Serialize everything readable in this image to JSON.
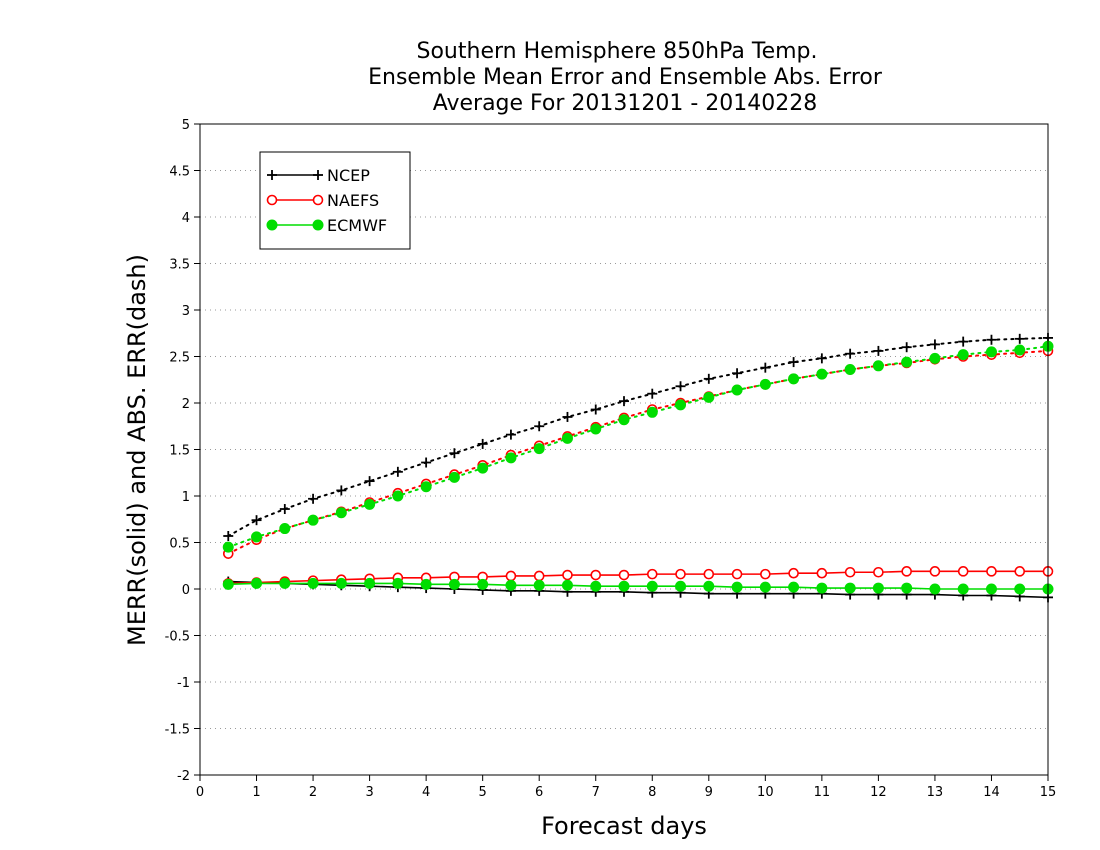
{
  "chart_data": {
    "type": "line",
    "title_lines": [
      "Southern Hemisphere 850hPa Temp.",
      "Ensemble Mean Error and Ensemble Abs. Error",
      "Average For 20131201 - 20140228"
    ],
    "xlabel": "Forecast days",
    "ylabel": "MERR(solid) and ABS. ERR(dash)",
    "xlim": [
      0,
      15
    ],
    "ylim": [
      -2,
      5
    ],
    "xticks": [
      0,
      1,
      2,
      3,
      4,
      5,
      6,
      7,
      8,
      9,
      10,
      11,
      12,
      13,
      14,
      15
    ],
    "xtick_labels": [
      "0",
      "1",
      "2",
      "3",
      "4",
      "5",
      "6",
      "7",
      "8",
      "9",
      "10",
      "11",
      "12",
      "13",
      "14",
      "15"
    ],
    "yticks": [
      -2,
      -1.5,
      -1,
      -0.5,
      0,
      0.5,
      1,
      1.5,
      2,
      2.5,
      3,
      3.5,
      4,
      4.5,
      5
    ],
    "ytick_labels": [
      "-2",
      "-1.5",
      "-1",
      "-0.5",
      "0",
      "0.5",
      "1",
      "1.5",
      "2",
      "2.5",
      "3",
      "3.5",
      "4",
      "4.5",
      "5"
    ],
    "grid": "horizontal dotted",
    "legend_position": "top-left",
    "x": [
      0.5,
      1,
      1.5,
      2,
      2.5,
      3,
      3.5,
      4,
      4.5,
      5,
      5.5,
      6,
      6.5,
      7,
      7.5,
      8,
      8.5,
      9,
      9.5,
      10,
      10.5,
      11,
      11.5,
      12,
      12.5,
      13,
      13.5,
      14,
      14.5,
      15
    ],
    "series": [
      {
        "name": "NCEP",
        "color": "#000000",
        "marker": "plus",
        "merr": [
          0.08,
          0.07,
          0.06,
          0.05,
          0.04,
          0.03,
          0.02,
          0.01,
          0.0,
          -0.01,
          -0.02,
          -0.02,
          -0.03,
          -0.03,
          -0.03,
          -0.04,
          -0.04,
          -0.05,
          -0.05,
          -0.05,
          -0.05,
          -0.05,
          -0.06,
          -0.06,
          -0.06,
          -0.06,
          -0.07,
          -0.07,
          -0.08,
          -0.09
        ],
        "abs_err": [
          0.57,
          0.74,
          0.86,
          0.97,
          1.06,
          1.16,
          1.26,
          1.36,
          1.46,
          1.56,
          1.66,
          1.75,
          1.85,
          1.93,
          2.02,
          2.1,
          2.18,
          2.26,
          2.32,
          2.38,
          2.44,
          2.48,
          2.53,
          2.56,
          2.6,
          2.63,
          2.66,
          2.68,
          2.69,
          2.7
        ]
      },
      {
        "name": "NAEFS",
        "color": "#ff0000",
        "marker": "open-circle",
        "merr": [
          0.06,
          0.07,
          0.08,
          0.09,
          0.1,
          0.11,
          0.12,
          0.12,
          0.13,
          0.13,
          0.14,
          0.14,
          0.15,
          0.15,
          0.15,
          0.16,
          0.16,
          0.16,
          0.16,
          0.16,
          0.17,
          0.17,
          0.18,
          0.18,
          0.19,
          0.19,
          0.19,
          0.19,
          0.19,
          0.19
        ],
        "abs_err": [
          0.38,
          0.53,
          0.65,
          0.74,
          0.83,
          0.93,
          1.03,
          1.13,
          1.23,
          1.33,
          1.44,
          1.54,
          1.64,
          1.74,
          1.84,
          1.93,
          2.0,
          2.07,
          2.14,
          2.2,
          2.26,
          2.31,
          2.36,
          2.4,
          2.43,
          2.47,
          2.5,
          2.52,
          2.54,
          2.56
        ]
      },
      {
        "name": "ECMWF",
        "color": "#00dd00",
        "marker": "filled-circle",
        "merr": [
          0.05,
          0.06,
          0.06,
          0.06,
          0.06,
          0.06,
          0.06,
          0.05,
          0.05,
          0.05,
          0.04,
          0.04,
          0.04,
          0.03,
          0.03,
          0.03,
          0.03,
          0.03,
          0.02,
          0.02,
          0.02,
          0.01,
          0.01,
          0.01,
          0.01,
          0.0,
          0.0,
          0.0,
          0.0,
          0.0
        ],
        "abs_err": [
          0.45,
          0.56,
          0.65,
          0.74,
          0.82,
          0.91,
          1.0,
          1.1,
          1.2,
          1.3,
          1.41,
          1.51,
          1.62,
          1.72,
          1.82,
          1.9,
          1.98,
          2.06,
          2.14,
          2.2,
          2.26,
          2.31,
          2.36,
          2.4,
          2.44,
          2.48,
          2.52,
          2.55,
          2.57,
          2.61
        ]
      }
    ]
  }
}
